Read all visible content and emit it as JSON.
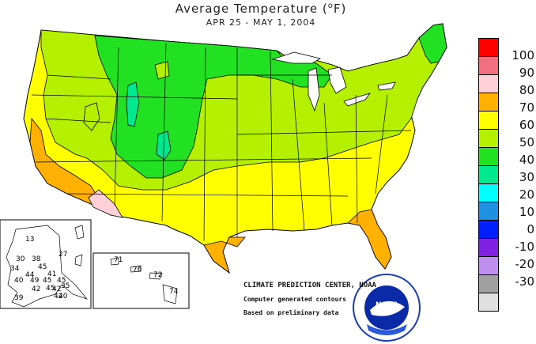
{
  "header": {
    "title_text": "Average Temperature (",
    "title_unit": "o",
    "title_unit_suffix": "F)",
    "date_range": "APR 25 - MAY  1, 2004"
  },
  "legend": {
    "entries": [
      {
        "label": "100",
        "color": "#ff0000"
      },
      {
        "label": "90",
        "color": "#f07080"
      },
      {
        "label": "80",
        "color": "#ffd0d8"
      },
      {
        "label": "70",
        "color": "#ffb000"
      },
      {
        "label": "60",
        "color": "#ffff00"
      },
      {
        "label": "50",
        "color": "#b4f000"
      },
      {
        "label": "40",
        "color": "#22e022"
      },
      {
        "label": "30",
        "color": "#00e890"
      },
      {
        "label": "20",
        "color": "#00ffff"
      },
      {
        "label": "10",
        "color": "#2090e0"
      },
      {
        "label": "0",
        "color": "#0020ff"
      },
      {
        "label": "-10",
        "color": "#8020e0"
      },
      {
        "label": "-20",
        "color": "#c090f0"
      },
      {
        "label": "-30",
        "color": "#a0a0a0"
      }
    ],
    "last_swatch_color": "#e0e0e0"
  },
  "alaska_values": [
    "13",
    "30",
    "38",
    "27",
    "34",
    "45",
    "44",
    "41",
    "40",
    "49",
    "45",
    "45",
    "42",
    "45",
    "42",
    "35",
    "39",
    "42",
    "40"
  ],
  "hawaii_values": [
    "71",
    "76",
    "72",
    "74"
  ],
  "credits": {
    "center": "CLIMATE PREDICTION CENTER, NOAA",
    "contours": "Computer generated contours",
    "preliminary": "Based on preliminary data"
  },
  "logo": {
    "text": "NOAA"
  }
}
